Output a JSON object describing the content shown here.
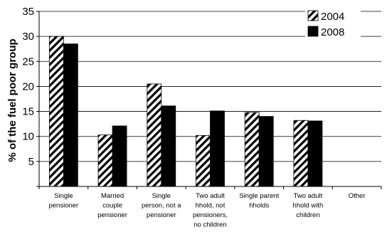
{
  "chart_data": {
    "type": "bar",
    "title": "",
    "xlabel": "",
    "ylabel": "% of the fuel poor group",
    "ylim": [
      0,
      35
    ],
    "yticks": [
      "",
      "5",
      "10",
      "15",
      "20",
      "25",
      "30",
      "35"
    ],
    "categories": [
      [
        "Single",
        "pensioner"
      ],
      [
        "Married",
        "couple",
        "pensioner"
      ],
      [
        "Single",
        "person, not a",
        "pensioner"
      ],
      [
        "Two adult",
        "hhold, not",
        "pensioners,",
        "no children"
      ],
      [
        "Single parent",
        "hholds"
      ],
      [
        "Two adult",
        "hhold with",
        "children"
      ],
      [
        "Other"
      ]
    ],
    "series": [
      {
        "name": "2004",
        "pattern": "diagonal-hatch",
        "values": [
          30,
          10.3,
          20.5,
          10.2,
          14.8,
          13.2,
          null
        ]
      },
      {
        "name": "2008",
        "color": "#000000",
        "values": [
          28.5,
          12.1,
          16.1,
          15.1,
          14.0,
          13.1,
          null
        ]
      }
    ],
    "grid": true,
    "legend_position": "top-right"
  }
}
